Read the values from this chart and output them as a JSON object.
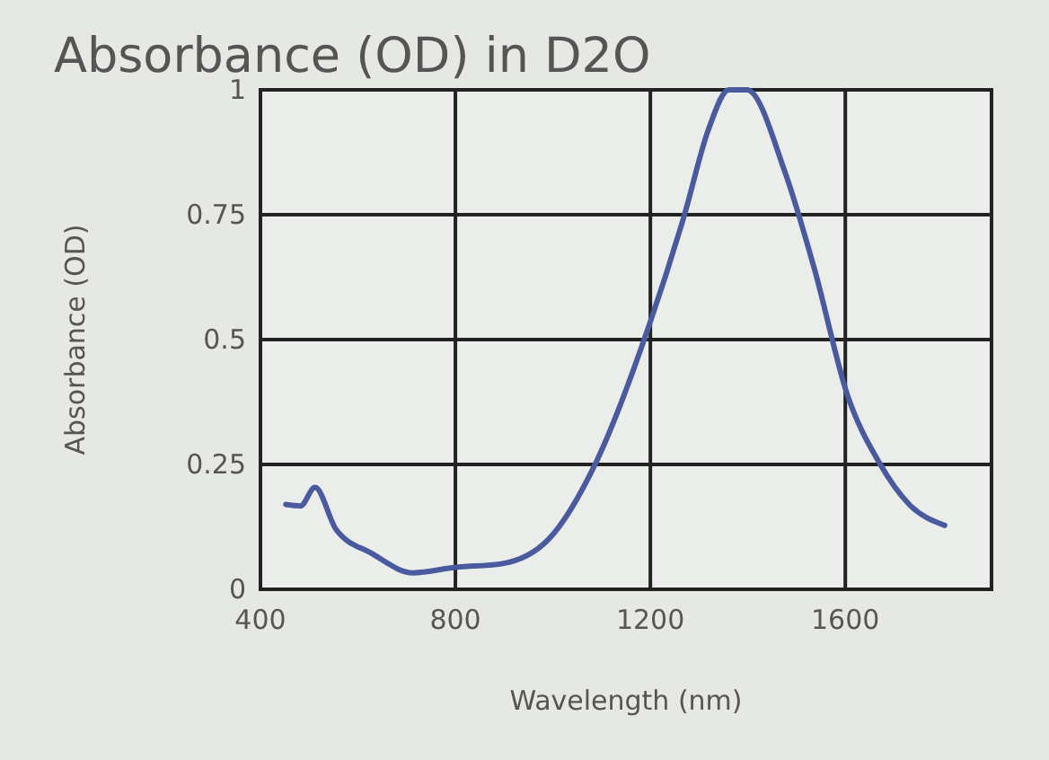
{
  "chart_data": {
    "type": "line",
    "title": "Absorbance (OD) in D2O",
    "xlabel": "Wavelength (nm)",
    "ylabel": "Absorbance (OD)",
    "series": [
      {
        "color": "#4a5a9e",
        "x": [
          452,
          482,
          512,
          555,
          628,
          713,
          800,
          894,
          991,
          1088,
          1198,
          1270,
          1319,
          1361,
          1398,
          1476,
          1537,
          1604,
          1670,
          1731,
          1804
        ],
        "values": [
          0.17,
          0.167,
          0.204,
          0.12,
          0.072,
          0.033,
          0.044,
          0.051,
          0.1,
          0.253,
          0.53,
          0.75,
          0.92,
          1.0,
          1.0,
          0.836,
          0.64,
          0.39,
          0.253,
          0.17,
          0.128
        ]
      }
    ],
    "xlim": [
      400,
      1900
    ],
    "xticks": [
      400,
      800,
      1200,
      1600
    ],
    "ylim": [
      0,
      1
    ],
    "yticks": [
      0,
      {
        "value": 0.25,
        "label": "0.25"
      },
      {
        "value": 0.5,
        "label": "0.5"
      },
      {
        "value": 0.75,
        "label": "0.75"
      },
      1
    ],
    "grid": true,
    "marker": "none",
    "line_style": "solid"
  }
}
